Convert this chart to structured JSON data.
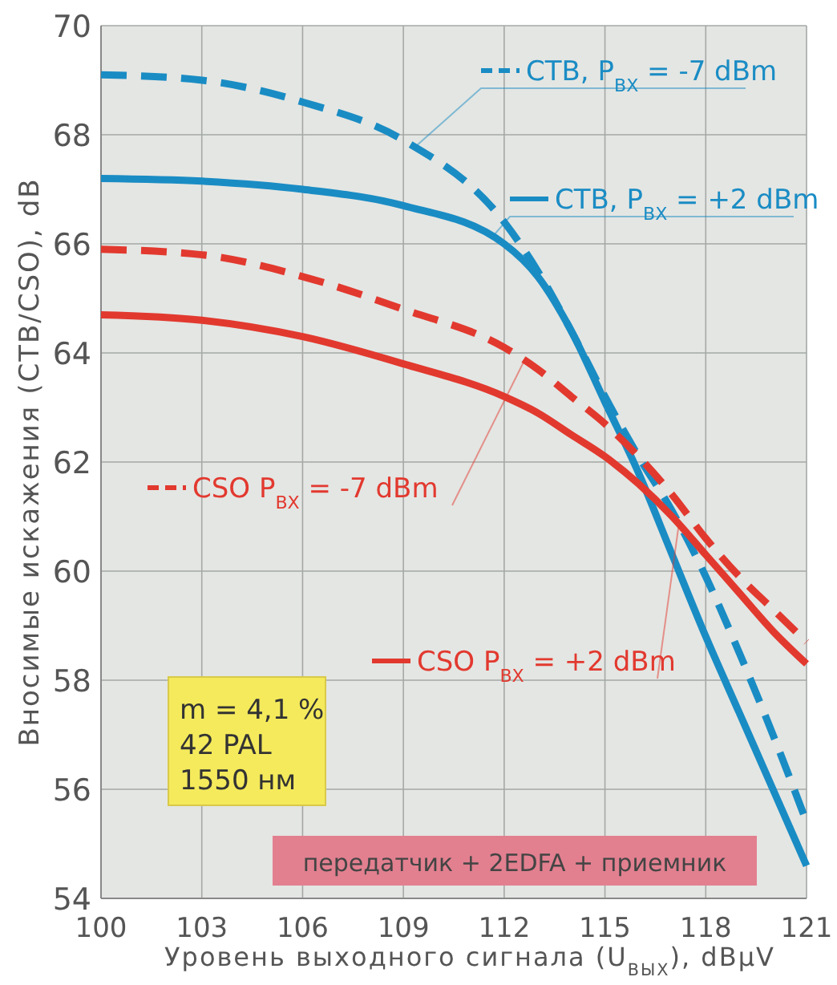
{
  "chart_data": {
    "type": "line",
    "xlabel": "Уровень выходного сигнала (U$_{ВЫХ}$), dBμV",
    "ylabel": "Вносимые искажения (CTB/CSO), dB",
    "x": [
      100,
      103,
      106,
      109,
      112,
      113,
      114,
      115,
      116,
      117,
      118,
      119,
      120,
      121
    ],
    "series": [
      {
        "name": "CTB, P$_{ВХ}$ = -7 dBm",
        "color": "#1a8cc4",
        "line_style": "dashed",
        "values": [
          69.1,
          69.0,
          68.6,
          67.9,
          66.4,
          65.5,
          64.4,
          63.2,
          62.1,
          61.1,
          59.9,
          58.5,
          57.0,
          55.4
        ]
      },
      {
        "name": "CTB, P$_{ВХ}$ = +2 dBm",
        "color": "#1a8cc4",
        "line_style": "solid",
        "values": [
          67.2,
          67.15,
          67.0,
          66.7,
          66.0,
          65.4,
          64.4,
          63.1,
          61.8,
          60.3,
          58.8,
          57.4,
          56.0,
          54.6
        ]
      },
      {
        "name": "CSO P$_{ВХ}$ = -7 dBm",
        "color": "#e2392f",
        "line_style": "dashed",
        "values": [
          65.9,
          65.8,
          65.4,
          64.8,
          64.1,
          63.7,
          63.2,
          62.7,
          62.1,
          61.4,
          60.6,
          59.9,
          59.3,
          58.7
        ]
      },
      {
        "name": "CSO P$_{ВХ}$ = +2 dBm",
        "color": "#e2392f",
        "line_style": "solid",
        "values": [
          64.7,
          64.6,
          64.3,
          63.8,
          63.2,
          62.9,
          62.5,
          62.1,
          61.6,
          61.0,
          60.3,
          59.6,
          58.9,
          58.3
        ]
      }
    ],
    "xlim": [
      100,
      121
    ],
    "xticks": [
      100,
      103,
      106,
      109,
      112,
      115,
      118,
      121
    ],
    "ylim": [
      54,
      70
    ],
    "yticks": [
      54,
      56,
      58,
      60,
      62,
      64,
      66,
      68,
      70
    ],
    "grid": true,
    "legend": "top right",
    "annotations": [
      "m = 4,1 %",
      "42 PAL",
      "1550 нм",
      "передатчик + 2EDFA  + приемник"
    ]
  }
}
